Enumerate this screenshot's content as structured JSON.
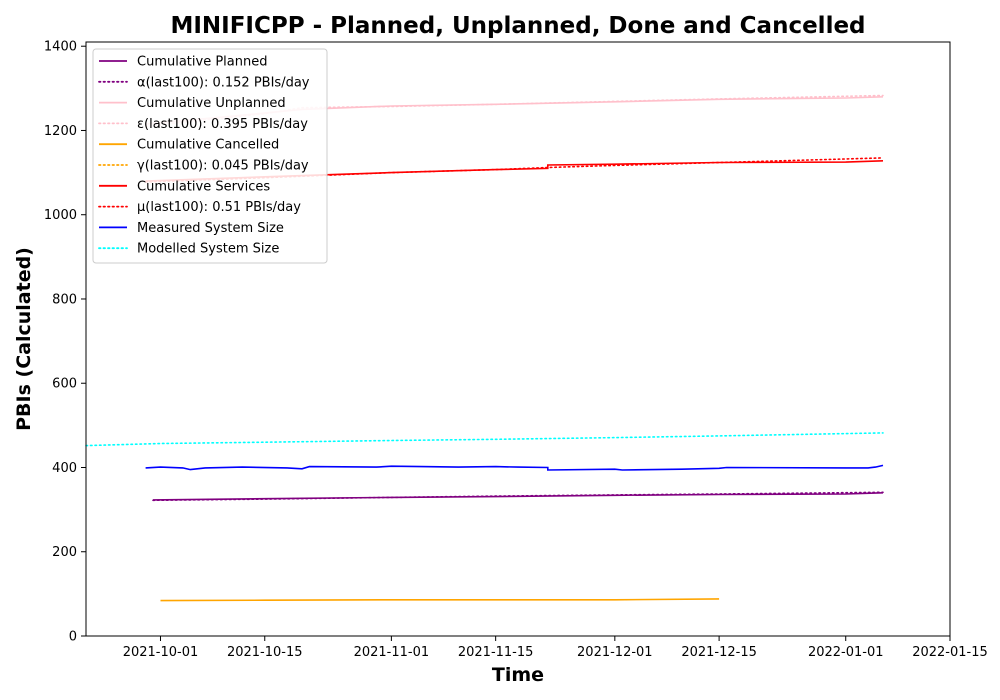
{
  "chart_data": {
    "type": "line",
    "title": "MINIFICPP - Planned, Unplanned, Done  and Cancelled",
    "xlabel": "Time",
    "ylabel": "PBIs (Calculated)",
    "xlim": [
      "2021-09-21",
      "2022-01-15"
    ],
    "ylim": [
      0,
      1410
    ],
    "x_ticks": [
      "2021-10-01",
      "2021-10-15",
      "2021-11-01",
      "2021-11-15",
      "2021-12-01",
      "2021-12-15",
      "2022-01-01",
      "2022-01-15"
    ],
    "y_ticks": [
      0,
      200,
      400,
      600,
      800,
      1000,
      1200,
      1400
    ],
    "grid": false,
    "legend_position": "top-left",
    "legend": [
      {
        "label": "Cumulative Planned",
        "color": "#800080",
        "style": "solid"
      },
      {
        "label": "α(last100): 0.152 PBIs/day",
        "color": "#800080",
        "style": "dotted"
      },
      {
        "label": "Cumulative Unplanned",
        "color": "#ffc0cb",
        "style": "solid"
      },
      {
        "label": "ε(last100): 0.395 PBIs/day",
        "color": "#ffc0cb",
        "style": "dotted"
      },
      {
        "label": "Cumulative Cancelled",
        "color": "#ffa500",
        "style": "solid"
      },
      {
        "label": "γ(last100): 0.045 PBIs/day",
        "color": "#ffa500",
        "style": "dotted"
      },
      {
        "label": "Cumulative Services",
        "color": "#ff0000",
        "style": "solid"
      },
      {
        "label": "μ(last100): 0.51 PBIs/day",
        "color": "#ff0000",
        "style": "dotted"
      },
      {
        "label": "Measured System Size",
        "color": "#0000ff",
        "style": "solid"
      },
      {
        "label": "Modelled System Size",
        "color": "#00ffff",
        "style": "dotted"
      }
    ],
    "series": [
      {
        "color": "#ffc0cb",
        "style": "solid",
        "points": [
          [
            "2021-09-29",
            1215
          ],
          [
            "2021-10-10",
            1233
          ],
          [
            "2021-10-20",
            1250
          ],
          [
            "2021-11-01",
            1258
          ],
          [
            "2021-11-15",
            1262
          ],
          [
            "2021-12-01",
            1268
          ],
          [
            "2021-12-15",
            1274
          ],
          [
            "2022-01-01",
            1277
          ],
          [
            "2022-01-06",
            1280
          ]
        ]
      },
      {
        "color": "#ffc0cb",
        "style": "dotted",
        "points": [
          [
            "2021-09-29",
            1210
          ],
          [
            "2021-10-15",
            1240
          ],
          [
            "2021-10-20",
            1254
          ],
          [
            "2021-11-01",
            1257
          ],
          [
            "2021-11-15",
            1262
          ],
          [
            "2021-12-01",
            1269
          ],
          [
            "2021-12-15",
            1275
          ],
          [
            "2022-01-06",
            1283
          ]
        ]
      },
      {
        "color": "#ff0000",
        "style": "solid",
        "points": [
          [
            "2021-09-29",
            1080
          ],
          [
            "2021-10-15",
            1090
          ],
          [
            "2021-11-01",
            1100
          ],
          [
            "2021-11-15",
            1107
          ],
          [
            "2021-11-22",
            1110
          ],
          [
            "2021-11-22",
            1118
          ],
          [
            "2021-12-01",
            1120
          ],
          [
            "2021-12-15",
            1124
          ],
          [
            "2022-01-01",
            1125
          ],
          [
            "2022-01-06",
            1128
          ]
        ]
      },
      {
        "color": "#ff0000",
        "style": "dotted",
        "points": [
          [
            "2021-09-29",
            1078
          ],
          [
            "2021-10-15",
            1088
          ],
          [
            "2021-11-01",
            1100
          ],
          [
            "2021-11-15",
            1107
          ],
          [
            "2021-11-22",
            1112
          ],
          [
            "2021-12-01",
            1117
          ],
          [
            "2021-12-15",
            1124
          ],
          [
            "2022-01-06",
            1135
          ]
        ]
      },
      {
        "color": "#00ffff",
        "style": "dotted",
        "points": [
          [
            "2021-09-21",
            452
          ],
          [
            "2021-10-01",
            457
          ],
          [
            "2021-10-15",
            460
          ],
          [
            "2021-11-01",
            464
          ],
          [
            "2021-11-15",
            467
          ],
          [
            "2021-12-01",
            471
          ],
          [
            "2021-12-15",
            475
          ],
          [
            "2022-01-06",
            482
          ]
        ]
      },
      {
        "color": "#0000ff",
        "style": "solid",
        "points": [
          [
            "2021-09-29",
            399
          ],
          [
            "2021-10-01",
            401
          ],
          [
            "2021-10-04",
            399
          ],
          [
            "2021-10-05",
            395
          ],
          [
            "2021-10-07",
            399
          ],
          [
            "2021-10-12",
            401
          ],
          [
            "2021-10-18",
            399
          ],
          [
            "2021-10-20",
            397
          ],
          [
            "2021-10-21",
            402
          ],
          [
            "2021-10-30",
            401
          ],
          [
            "2021-11-01",
            403
          ],
          [
            "2021-11-05",
            402
          ],
          [
            "2021-11-10",
            401
          ],
          [
            "2021-11-15",
            402
          ],
          [
            "2021-11-18",
            401
          ],
          [
            "2021-11-22",
            400
          ],
          [
            "2021-11-22",
            394
          ],
          [
            "2021-12-01",
            396
          ],
          [
            "2021-12-02",
            394
          ],
          [
            "2021-12-10",
            396
          ],
          [
            "2021-12-15",
            398
          ],
          [
            "2021-12-16",
            400
          ],
          [
            "2022-01-01",
            399
          ],
          [
            "2022-01-04",
            399
          ],
          [
            "2022-01-05",
            401
          ],
          [
            "2022-01-06",
            405
          ]
        ]
      },
      {
        "color": "#800080",
        "style": "solid",
        "points": [
          [
            "2021-09-30",
            323
          ],
          [
            "2021-10-15",
            326
          ],
          [
            "2021-11-01",
            329
          ],
          [
            "2021-11-15",
            331
          ],
          [
            "2021-12-01",
            334
          ],
          [
            "2021-12-15",
            336
          ],
          [
            "2022-01-01",
            337
          ],
          [
            "2022-01-06",
            340
          ]
        ]
      },
      {
        "color": "#800080",
        "style": "dotted",
        "points": [
          [
            "2021-09-30",
            322
          ],
          [
            "2021-10-15",
            325
          ],
          [
            "2021-11-01",
            329
          ],
          [
            "2021-11-15",
            332
          ],
          [
            "2021-12-01",
            335
          ],
          [
            "2021-12-15",
            337
          ],
          [
            "2022-01-06",
            341
          ]
        ]
      },
      {
        "color": "#ffa500",
        "style": "solid",
        "points": [
          [
            "2021-10-01",
            84
          ],
          [
            "2021-10-15",
            85
          ],
          [
            "2021-11-01",
            86
          ],
          [
            "2021-11-15",
            86
          ],
          [
            "2021-12-01",
            86
          ],
          [
            "2021-12-15",
            88
          ]
        ]
      }
    ]
  }
}
